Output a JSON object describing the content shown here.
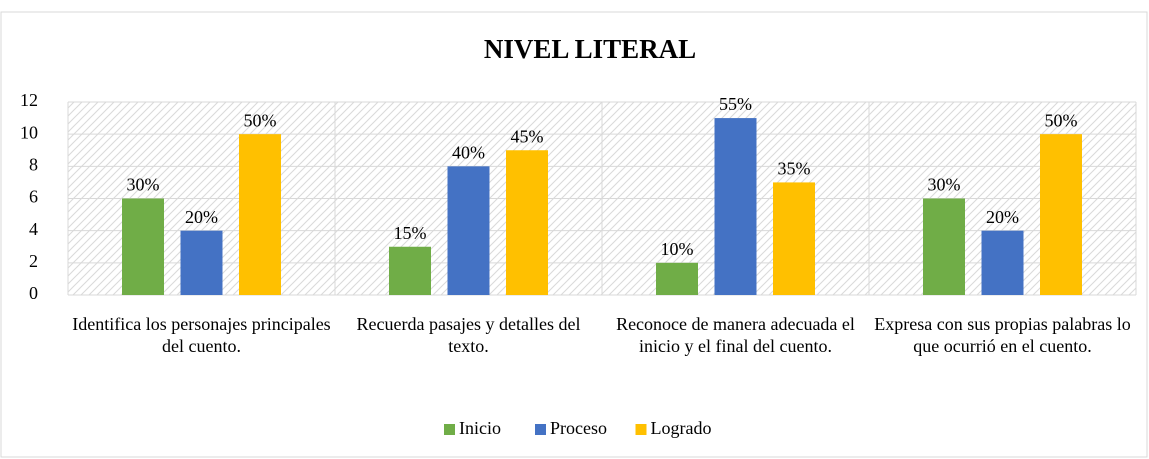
{
  "chart_data": {
    "type": "bar",
    "title": "NIVEL LITERAL",
    "categories": [
      "Identifica los personajes principales del cuento.",
      "Recuerda pasajes y detalles del texto.",
      "Reconoce de manera adecuada el inicio y el final del cuento.",
      "Expresa con sus propias palabras lo que ocurrió en el cuento."
    ],
    "series": [
      {
        "name": "Inicio",
        "color": "#70ad47",
        "values": [
          6,
          3,
          2,
          6
        ],
        "value_labels": [
          "30%",
          "15%",
          "10%",
          "30%"
        ]
      },
      {
        "name": "Proceso",
        "color": "#4472c4",
        "values": [
          4,
          8,
          11,
          4
        ],
        "value_labels": [
          "20%",
          "40%",
          "55%",
          "20%"
        ]
      },
      {
        "name": "Logrado",
        "color": "#ffc000",
        "values": [
          10,
          9,
          7,
          10
        ],
        "value_labels": [
          "50%",
          "45%",
          "35%",
          "50%"
        ]
      }
    ],
    "ylim": [
      0,
      12
    ],
    "yticks": [
      0,
      2,
      4,
      6,
      8,
      10,
      12
    ],
    "grid": true,
    "legend": "bottom"
  }
}
